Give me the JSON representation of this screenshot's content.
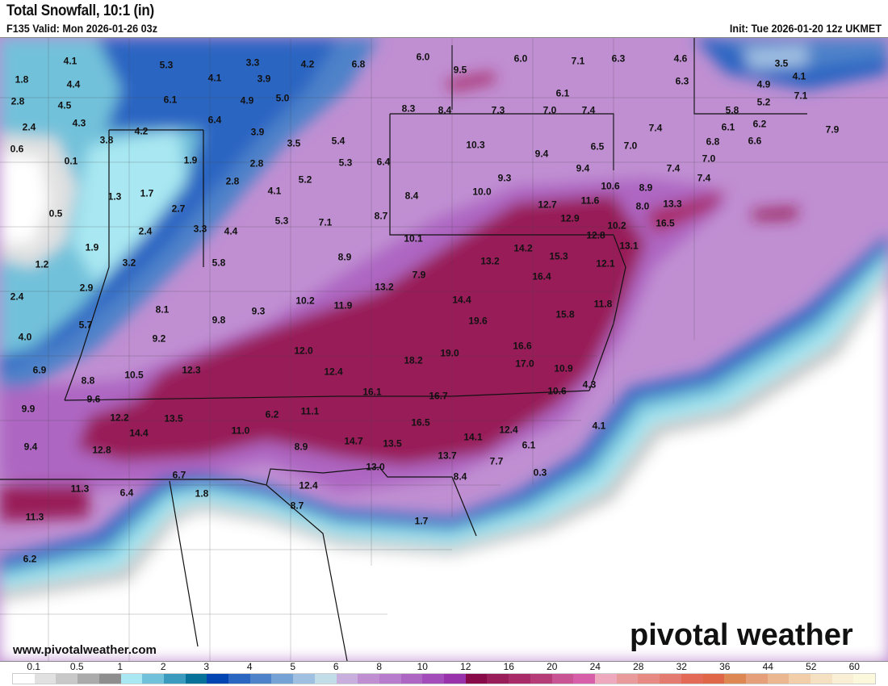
{
  "header": {
    "title": "Total Snowfall, 10:1 (in)",
    "valid": "F135 Valid: Mon 2026-01-26 03z",
    "init": "Init: Tue 2026-01-20 12z UKMET"
  },
  "footer": {
    "website": "www.pivotalweather.com",
    "logo": "pivotal weather"
  },
  "colorbar": {
    "labels": [
      "0.1",
      "0.5",
      "1",
      "2",
      "3",
      "4",
      "5",
      "6",
      "8",
      "10",
      "12",
      "16",
      "20",
      "24",
      "28",
      "32",
      "36",
      "44",
      "52",
      "60"
    ],
    "colors": [
      "#ffffff",
      "#e1e1e1",
      "#c8c8c8",
      "#ababab",
      "#8e8e8e",
      "#a9e8f2",
      "#72c1da",
      "#3a9bbf",
      "#06729a",
      "#0244b2",
      "#2a65c2",
      "#4e82c9",
      "#76a3d5",
      "#a0c0e2",
      "#c2dce8",
      "#c8afdd",
      "#c08fd2",
      "#b77ccb",
      "#ad66c2",
      "#a24db9",
      "#9933ab",
      "#880a48",
      "#981d58",
      "#a82b68",
      "#b63c78",
      "#c85494",
      "#d75fa9",
      "#efa9be",
      "#e99a9a",
      "#e78a84",
      "#e47b70",
      "#e26a56",
      "#df6748",
      "#dd8752",
      "#e5a07a",
      "#ebb790",
      "#f1cda9",
      "#f5e1c1",
      "#f8efd4",
      "#fbf8dc"
    ]
  },
  "map": {
    "values": [
      "4.1",
      "5.3",
      "3.3",
      "4.2",
      "6.8",
      "6.0",
      "6.0",
      "7.1",
      "6.3",
      "4.6",
      "3.5",
      "1.8",
      "4.4",
      "4.1",
      "3.9",
      "9.5",
      "6.3",
      "4.9",
      "4.1",
      "2.8",
      "4.5",
      "6.1",
      "4.9",
      "5.0",
      "6.1",
      "5.2",
      "7.1",
      "2.4",
      "4.3",
      "3.8",
      "4.2",
      "6.4",
      "3.9",
      "3.5",
      "8.3",
      "8.4",
      "7.3",
      "7.0",
      "7.4",
      "7.4",
      "5.8",
      "6.1",
      "6.2",
      "7.9",
      "0.6",
      "0.1",
      "1.9",
      "5.4",
      "5.3",
      "6.4",
      "10.3",
      "9.4",
      "6.5",
      "7.0",
      "6.8",
      "6.6",
      "7.0",
      "7.4",
      "2.8",
      "9.4",
      "1.3",
      "1.7",
      "2.8",
      "5.2",
      "9.3",
      "10.0",
      "10.6",
      "8.9",
      "7.4",
      "0.5",
      "2.7",
      "4.1",
      "8.4",
      "12.7",
      "11.6",
      "12.9",
      "8.0",
      "10.2",
      "13.3",
      "16.5",
      "2.4",
      "3.3",
      "4.4",
      "5.3",
      "7.1",
      "8.7",
      "10.1",
      "14.2",
      "12.8",
      "13.1",
      "15.3",
      "13.2",
      "12.1",
      "1.9",
      "1.2",
      "3.2",
      "5.8",
      "8.9",
      "7.9",
      "16.4",
      "13.2",
      "2.9",
      "2.4",
      "10.2",
      "11.9",
      "14.4",
      "11.8",
      "8.1",
      "9.3",
      "15.8",
      "5.7",
      "9.8",
      "19.6",
      "4.0",
      "9.2",
      "16.6",
      "12.0",
      "19.0",
      "18.2",
      "17.0",
      "6.9",
      "8.8",
      "10.5",
      "12.3",
      "12.4",
      "10.9",
      "4.3",
      "10.6",
      "9.6",
      "16.1",
      "16.7",
      "9.9",
      "12.2",
      "13.5",
      "6.2",
      "11.1",
      "16.5",
      "12.4",
      "4.1",
      "14.4",
      "11.0",
      "14.7",
      "13.5",
      "14.1",
      "6.1",
      "9.4",
      "12.8",
      "8.9",
      "13.7",
      "7.7",
      "13.0",
      "0.3",
      "6.7",
      "8.4",
      "11.3",
      "6.4",
      "1.8",
      "12.4",
      "8.7",
      "11.3",
      "1.7",
      "6.2"
    ]
  }
}
